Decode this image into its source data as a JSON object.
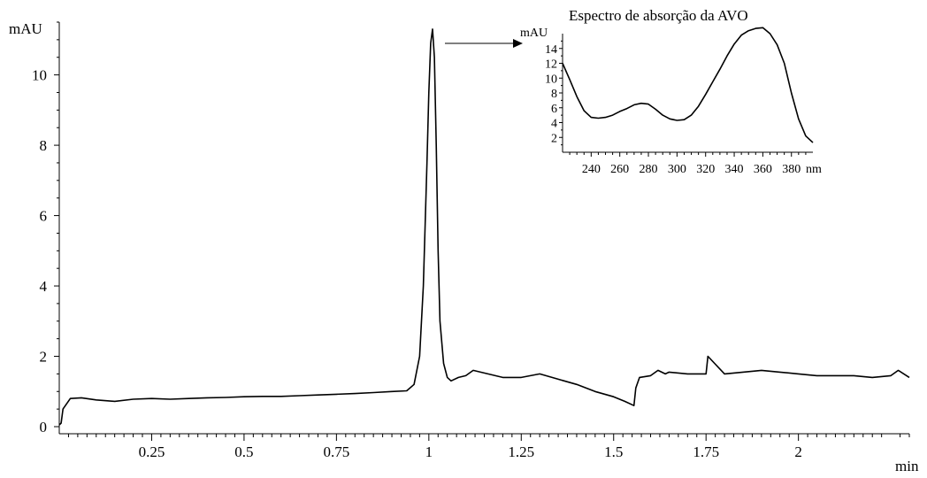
{
  "chart_data": [
    {
      "type": "line",
      "title": "",
      "ylabel": "mAU",
      "xlabel": "min",
      "xlim": [
        0,
        2.3
      ],
      "ylim": [
        0,
        11.5
      ],
      "x_ticks": [
        0.25,
        0.5,
        0.75,
        1,
        1.25,
        1.5,
        1.75,
        2
      ],
      "x_tick_labels": [
        "0.25",
        "0.5",
        "0.75",
        "1",
        "1.25",
        "1.5",
        "1.75",
        "2"
      ],
      "y_ticks": [
        0,
        2,
        4,
        6,
        8,
        10
      ],
      "y_tick_labels": [
        "0",
        "2",
        "4",
        "6",
        "8",
        "10"
      ],
      "grid": false,
      "series": [
        {
          "x": [
            0,
            0.005,
            0.01,
            0.03,
            0.06,
            0.1,
            0.15,
            0.2,
            0.25,
            0.3,
            0.35,
            0.4,
            0.45,
            0.5,
            0.55,
            0.6,
            0.65,
            0.7,
            0.75,
            0.8,
            0.85,
            0.9,
            0.94,
            0.96,
            0.975,
            0.985,
            0.995,
            1.0,
            1.005,
            1.01,
            1.015,
            1.02,
            1.025,
            1.03,
            1.04,
            1.05,
            1.06,
            1.08,
            1.1,
            1.12,
            1.14,
            1.16,
            1.18,
            1.2,
            1.25,
            1.3,
            1.35,
            1.4,
            1.45,
            1.5,
            1.53,
            1.555,
            1.56,
            1.57,
            1.6,
            1.62,
            1.64,
            1.65,
            1.7,
            1.75,
            1.755,
            1.8,
            1.85,
            1.9,
            1.95,
            2.0,
            2.05,
            2.1,
            2.15,
            2.2,
            2.25,
            2.27,
            2.3
          ],
          "y": [
            0.05,
            0.1,
            0.5,
            0.8,
            0.82,
            0.76,
            0.72,
            0.78,
            0.8,
            0.78,
            0.8,
            0.82,
            0.83,
            0.85,
            0.86,
            0.86,
            0.88,
            0.9,
            0.92,
            0.94,
            0.97,
            1.0,
            1.02,
            1.2,
            2.0,
            4.0,
            7.5,
            9.5,
            10.9,
            11.3,
            10.5,
            8.0,
            5.0,
            3.0,
            1.8,
            1.4,
            1.3,
            1.4,
            1.45,
            1.6,
            1.55,
            1.5,
            1.45,
            1.4,
            1.4,
            1.5,
            1.35,
            1.2,
            1.0,
            0.85,
            0.72,
            0.6,
            1.1,
            1.4,
            1.45,
            1.6,
            1.5,
            1.55,
            1.5,
            1.5,
            2.0,
            1.5,
            1.55,
            1.6,
            1.55,
            1.5,
            1.45,
            1.45,
            1.45,
            1.4,
            1.45,
            1.6,
            1.4
          ]
        }
      ]
    },
    {
      "type": "line",
      "title": "Espectro de absorção da AVO",
      "ylabel": "mAU",
      "xlabel": "nm",
      "xlim": [
        220,
        395
      ],
      "ylim": [
        0,
        16
      ],
      "x_ticks": [
        240,
        260,
        280,
        300,
        320,
        340,
        360,
        380
      ],
      "x_tick_labels": [
        "240",
        "260",
        "280",
        "300",
        "320",
        "340",
        "360",
        "380"
      ],
      "y_ticks": [
        2,
        4,
        6,
        8,
        10,
        12,
        14
      ],
      "y_tick_labels": [
        "2",
        "4",
        "6",
        "8",
        "10",
        "12",
        "14"
      ],
      "grid": false,
      "series": [
        {
          "x": [
            220,
            225,
            230,
            235,
            240,
            245,
            250,
            255,
            260,
            265,
            270,
            275,
            280,
            285,
            290,
            295,
            300,
            305,
            310,
            315,
            320,
            325,
            330,
            335,
            340,
            345,
            350,
            355,
            360,
            365,
            370,
            375,
            380,
            385,
            390,
            395
          ],
          "y": [
            12.0,
            9.8,
            7.5,
            5.6,
            4.7,
            4.6,
            4.7,
            5.0,
            5.5,
            5.9,
            6.4,
            6.6,
            6.5,
            5.8,
            5.0,
            4.5,
            4.3,
            4.4,
            5.0,
            6.2,
            7.8,
            9.5,
            11.2,
            13.0,
            14.6,
            15.8,
            16.4,
            16.7,
            16.8,
            16.0,
            14.5,
            12.0,
            8.0,
            4.5,
            2.2,
            1.3
          ]
        }
      ]
    }
  ]
}
